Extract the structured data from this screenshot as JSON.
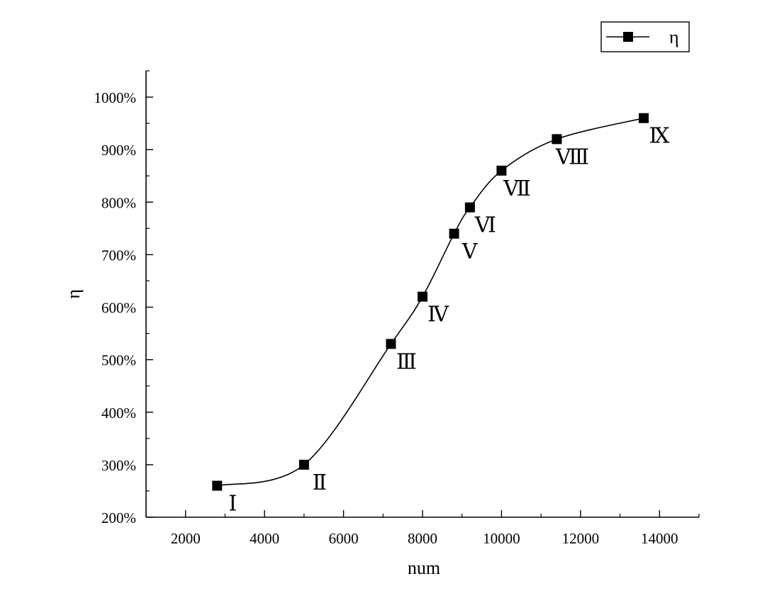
{
  "chart_data": {
    "type": "line",
    "xlabel": "num",
    "ylabel": "η",
    "xlim": [
      1000,
      15000
    ],
    "ylim": [
      200,
      1050
    ],
    "x_ticks": [
      2000,
      4000,
      6000,
      8000,
      10000,
      12000,
      14000
    ],
    "y_ticks": [
      200,
      300,
      400,
      500,
      600,
      700,
      800,
      900,
      1000
    ],
    "y_tick_suffix": "%",
    "series": [
      {
        "name": "η",
        "color": "#000000",
        "marker": "square",
        "smooth": true,
        "x": [
          2800,
          5000,
          7200,
          8000,
          8800,
          9200,
          10000,
          11400,
          13600
        ],
        "y": [
          260,
          300,
          530,
          620,
          740,
          790,
          860,
          920,
          960
        ],
        "point_labels": [
          "Ⅰ",
          "Ⅱ",
          "Ⅲ",
          "Ⅳ",
          "Ⅴ",
          "Ⅵ",
          "Ⅶ",
          "Ⅷ",
          "Ⅸ"
        ]
      }
    ],
    "legend": {
      "position": "top-right",
      "entries": [
        "η"
      ]
    },
    "grid": false
  }
}
